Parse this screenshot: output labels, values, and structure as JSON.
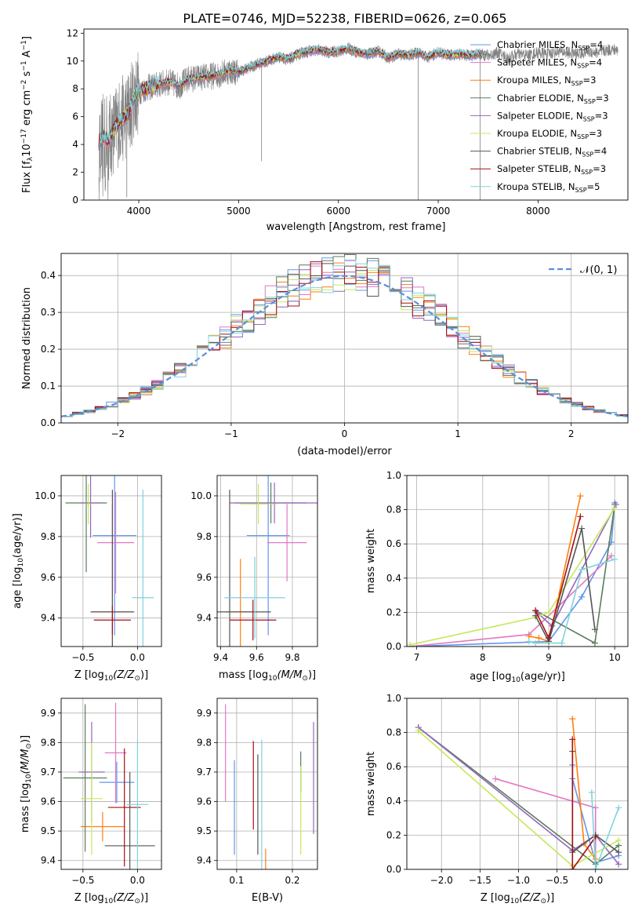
{
  "figure": {
    "title": "PLATE=0746, MJD=52238, FIBERID=0626, z=0.065",
    "palette": [
      "#6495ed",
      "#e377c2",
      "#ff7f0e",
      "#5a7d5a",
      "#9467bd",
      "#c5e85c",
      "#555555",
      "#a50f15",
      "#7fd3dc"
    ],
    "spectrum_color": "#808080"
  },
  "chart_data": [
    {
      "id": "spectrum",
      "type": "line",
      "xlabel": "wavelength [Angstrom, rest frame]",
      "ylabel": "Flux [f",
      "ylabel_parts": [
        "Flux [f",
        "λ",
        "10",
        "−17",
        " erg cm",
        "−2",
        " s",
        "−1",
        " A",
        "−1",
        "]"
      ],
      "xlim": [
        3450,
        8900
      ],
      "ylim": [
        0,
        12.3
      ],
      "xticks": [
        4000,
        5000,
        6000,
        7000,
        8000
      ],
      "yticks": [
        0,
        2,
        4,
        6,
        8,
        10,
        12
      ],
      "grid": false,
      "legend_placement": "top-right",
      "data_range": [
        3600,
        8800
      ],
      "model_envelope": {
        "x": [
          3600,
          3650,
          3700,
          3750,
          3800,
          3850,
          3900,
          3950,
          4000,
          4100,
          4200,
          4300,
          4400,
          4500,
          4600,
          4700,
          4800,
          4900,
          5000,
          5100,
          5200,
          5300,
          5400,
          5500,
          5600,
          5700,
          5800,
          5900,
          6000,
          6100,
          6200,
          6300,
          6400,
          6500,
          6600,
          6700,
          6800,
          6900,
          7000,
          7100,
          7200,
          7300,
          7400,
          7500,
          7600,
          7700,
          7800,
          7900,
          8000,
          8100,
          8200,
          8300,
          8400,
          8500,
          8600,
          8700,
          8800
        ],
        "y": [
          4.2,
          4.5,
          4.3,
          5.0,
          5.6,
          5.9,
          6.3,
          7.4,
          7.8,
          8.1,
          8.3,
          8.5,
          8.2,
          8.7,
          8.8,
          8.9,
          9.0,
          9.3,
          9.2,
          9.5,
          9.8,
          10.0,
          10.3,
          10.1,
          10.5,
          10.7,
          10.8,
          10.6,
          10.7,
          10.9,
          10.6,
          10.5,
          10.7,
          10.2,
          10.5,
          10.4,
          10.6,
          10.3,
          10.6,
          10.4,
          10.5,
          10.4,
          10.5,
          10.4,
          10.6,
          10.2,
          10.5,
          10.4,
          10.6,
          10.5,
          10.7,
          10.6,
          10.5,
          10.7,
          10.6,
          10.8,
          10.8
        ]
      },
      "absorption_dips": [
        [
          5230,
          2.8
        ],
        [
          6800,
          0
        ],
        [
          7420,
          0
        ],
        [
          3880,
          0.2
        ]
      ],
      "legend": [
        {
          "label": "Chabrier MILES, N",
          "sub": "SSP",
          "n": "=4"
        },
        {
          "label": "Salpeter MILES, N",
          "sub": "SSP",
          "n": "=4"
        },
        {
          "label": "Kroupa MILES, N",
          "sub": "SSP",
          "n": "=3"
        },
        {
          "label": "Chabrier ELODIE, N",
          "sub": "SSP",
          "n": "=3"
        },
        {
          "label": "Salpeter ELODIE, N",
          "sub": "SSP",
          "n": "=3"
        },
        {
          "label": "Kroupa ELODIE, N",
          "sub": "SSP",
          "n": "=3"
        },
        {
          "label": "Chabrier STELIB, N",
          "sub": "SSP",
          "n": "=4"
        },
        {
          "label": "Salpeter STELIB, N",
          "sub": "SSP",
          "n": "=3"
        },
        {
          "label": "Kroupa STELIB, N",
          "sub": "SSP",
          "n": "=5"
        }
      ]
    },
    {
      "id": "residuals",
      "type": "line",
      "xlabel": "(data-model)/error",
      "ylabel": "Normed distribution",
      "xlim": [
        -2.5,
        2.5
      ],
      "ylim": [
        0,
        0.46
      ],
      "xticks": [
        -2,
        -1,
        0,
        1,
        2
      ],
      "xtick_labels": [
        "−2",
        "−1",
        "0",
        "1",
        "2"
      ],
      "yticks": [
        0,
        0.1,
        0.2,
        0.3,
        0.4
      ],
      "ytick_labels": [
        "0.0",
        "0.1",
        "0.2",
        "0.3",
        "0.4"
      ],
      "grid": true,
      "legend_placement": "top-right",
      "legend": "𝒩(0, 1)",
      "bin_edges_start": -2.5,
      "bin_width": 0.1,
      "n_bins": 50
    },
    {
      "id": "z-age",
      "type": "scatter",
      "xlabel": "Z [log",
      "ylabel": "age  [log",
      "xlim": [
        -0.7,
        0.22
      ],
      "ylim": [
        9.26,
        10.1
      ],
      "xticks": [
        -0.5,
        0.0
      ],
      "xtick_labels": [
        "−0.5",
        "0.0"
      ],
      "yticks": [
        9.4,
        9.6,
        9.8,
        10.0
      ],
      "ytick_labels": [
        "9.4",
        "9.6",
        "9.8",
        "10.0"
      ],
      "grid": true,
      "points": [
        {
          "x": -0.21,
          "xerr": 0.2,
          "y": 9.805,
          "yerr": 0.49
        },
        {
          "x": -0.2,
          "xerr": 0.17,
          "y": 9.77,
          "yerr": 0.25
        },
        {
          "x": -0.23,
          "xerr": 0.19,
          "y": 9.43,
          "yerr": 0.53
        },
        {
          "x": -0.47,
          "xerr": 0.19,
          "y": 9.965,
          "yerr": 0.34
        },
        {
          "x": -0.43,
          "xerr": 0.1,
          "y": 9.965,
          "yerr": 0.17
        },
        {
          "x": -0.45,
          "xerr": 0.03,
          "y": 9.96,
          "yerr": 0.1
        },
        {
          "x": -0.23,
          "xerr": 0.2,
          "y": 9.43,
          "yerr": 0.6
        },
        {
          "x": -0.23,
          "xerr": 0.17,
          "y": 9.39,
          "yerr": 0.07
        },
        {
          "x": 0.05,
          "xerr": 0.1,
          "y": 9.5,
          "yerr": 0.53
        }
      ]
    },
    {
      "id": "mass-age",
      "type": "scatter",
      "xlabel": "mass [log",
      "ylabel": "",
      "xlim": [
        9.38,
        9.94
      ],
      "ylim": [
        9.26,
        10.1
      ],
      "xticks": [
        9.4,
        9.6,
        9.8
      ],
      "xtick_labels": [
        "9.4",
        "9.6",
        "9.8"
      ],
      "yticks": [
        9.4,
        9.6,
        9.8,
        10.0
      ],
      "ytick_labels": [
        "9.4",
        "9.6",
        "9.8",
        "10.0"
      ],
      "grid": true,
      "points": [
        {
          "x": 9.665,
          "xerr": 0.12,
          "y": 9.805,
          "yerr": 0.49
        },
        {
          "x": 9.77,
          "xerr": 0.11,
          "y": 9.77,
          "yerr": 0.19
        },
        {
          "x": 9.51,
          "xerr": 0.08,
          "y": 9.43,
          "yerr": 0.26
        },
        {
          "x": 9.68,
          "xerr": 0.2,
          "y": 9.965,
          "yerr": 0.1
        },
        {
          "x": 9.7,
          "xerr": 0.25,
          "y": 9.965,
          "yerr": 0.1
        },
        {
          "x": 9.61,
          "xerr": 0.1,
          "y": 9.96,
          "yerr": 0.1
        },
        {
          "x": 9.45,
          "xerr": 0.23,
          "y": 9.43,
          "yerr": 0.6
        },
        {
          "x": 9.58,
          "xerr": 0.13,
          "y": 9.39,
          "yerr": 0.1
        },
        {
          "x": 9.59,
          "xerr": 0.17,
          "y": 9.5,
          "yerr": 0.2
        }
      ]
    },
    {
      "id": "age-weight",
      "type": "line",
      "xlabel": "age  [log",
      "ylabel": "mass weight",
      "xlim": [
        6.85,
        10.2
      ],
      "ylim": [
        0,
        1.0
      ],
      "xticks": [
        7,
        8,
        9,
        10
      ],
      "yticks": [
        0,
        0.2,
        0.4,
        0.6,
        0.8,
        1.0
      ],
      "ytick_labels": [
        "0.0",
        "0.2",
        "0.4",
        "0.6",
        "0.8",
        "1.0"
      ],
      "grid": true,
      "series": [
        {
          "x": [
            6.9,
            9.0,
            9.5,
            9.95,
            10.0
          ],
          "y": [
            0.0,
            0.03,
            0.29,
            0.61,
            0.84
          ]
        },
        {
          "x": [
            6.9,
            8.7,
            9.95
          ],
          "y": [
            0.0,
            0.07,
            0.53
          ]
        },
        {
          "x": [
            8.7,
            8.85,
            9.0,
            9.48
          ],
          "y": [
            0.06,
            0.05,
            0.03,
            0.88
          ]
        },
        {
          "x": [
            8.8,
            9.7,
            10.0
          ],
          "y": [
            0.21,
            0.02,
            0.83
          ]
        },
        {
          "x": [
            8.82,
            9.05,
            10.02
          ],
          "y": [
            0.2,
            0.12,
            0.83
          ]
        },
        {
          "x": [
            6.9,
            8.8,
            9.0,
            10.0
          ],
          "y": [
            0.01,
            0.17,
            0.2,
            0.81
          ]
        },
        {
          "x": [
            8.8,
            9.0,
            9.5,
            9.7
          ],
          "y": [
            0.18,
            0.03,
            0.69,
            0.1
          ]
        },
        {
          "x": [
            8.8,
            9.0,
            9.48
          ],
          "y": [
            0.21,
            0.05,
            0.76
          ]
        },
        {
          "x": [
            8.7,
            8.8,
            9.2,
            9.5,
            10.0
          ],
          "y": [
            0.03,
            0.02,
            0.02,
            0.45,
            0.51
          ]
        }
      ]
    },
    {
      "id": "z-mass",
      "type": "scatter",
      "xlabel": "Z [log",
      "ylabel": "mass [log",
      "xlim": [
        -0.7,
        0.22
      ],
      "ylim": [
        9.37,
        9.95
      ],
      "xticks": [
        -0.5,
        0.0
      ],
      "xtick_labels": [
        "−0.5",
        "0.0"
      ],
      "yticks": [
        9.4,
        9.5,
        9.6,
        9.7,
        9.8,
        9.9
      ],
      "ytick_labels": [
        "9.4",
        "9.5",
        "9.6",
        "9.7",
        "9.8",
        "9.9"
      ],
      "grid": true,
      "points": [
        {
          "x": -0.19,
          "xerr": 0.16,
          "y": 9.665,
          "yerr": 0.07
        },
        {
          "x": -0.2,
          "xerr": 0.1,
          "y": 9.765,
          "yerr": 0.17
        },
        {
          "x": -0.32,
          "xerr": 0.2,
          "y": 9.515,
          "yerr": 0.05
        },
        {
          "x": -0.48,
          "xerr": 0.2,
          "y": 9.68,
          "yerr": 0.25
        },
        {
          "x": -0.42,
          "xerr": 0.12,
          "y": 9.7,
          "yerr": 0.17
        },
        {
          "x": -0.42,
          "xerr": 0.1,
          "y": 9.61,
          "yerr": 0.19
        },
        {
          "x": -0.07,
          "xerr": 0.23,
          "y": 9.45,
          "yerr": 0.25
        },
        {
          "x": -0.12,
          "xerr": 0.15,
          "y": 9.58,
          "yerr": 0.2
        },
        {
          "x": 0.0,
          "xerr": 0.1,
          "y": 9.59,
          "yerr": 0.22
        }
      ]
    },
    {
      "id": "ebv-mass",
      "type": "scatter",
      "xlabel": "E(B-V)",
      "ylabel": "",
      "xlim": [
        0.065,
        0.245
      ],
      "ylim": [
        9.37,
        9.95
      ],
      "xticks": [
        0.1,
        0.2
      ],
      "xtick_labels": [
        "0.1",
        "0.2"
      ],
      "yticks": [
        9.4,
        9.5,
        9.6,
        9.7,
        9.8,
        9.9
      ],
      "ytick_labels": [
        "9.4",
        "9.5",
        "9.6",
        "9.7",
        "9.8",
        "9.9"
      ],
      "grid": true,
      "points": [
        {
          "x": 0.096,
          "y": 9.58,
          "yerr": 0.16
        },
        {
          "x": 0.08,
          "y": 9.765,
          "yerr": 0.165
        },
        {
          "x": 0.152,
          "y": 9.4,
          "yerr": 0.04
        },
        {
          "x": 0.215,
          "y": 9.7,
          "yerr": 0.07
        },
        {
          "x": 0.238,
          "y": 9.68,
          "yerr": 0.19
        },
        {
          "x": 0.215,
          "y": 9.57,
          "yerr": 0.15
        },
        {
          "x": 0.138,
          "y": 9.59,
          "yerr": 0.17
        },
        {
          "x": 0.13,
          "y": 9.655,
          "yerr": 0.15
        },
        {
          "x": 0.145,
          "y": 9.59,
          "yerr": 0.22
        }
      ]
    },
    {
      "id": "z-weight",
      "type": "line",
      "xlabel": "Z [log",
      "ylabel": "mass weight",
      "xlim": [
        -2.45,
        0.42
      ],
      "ylim": [
        0,
        1.0
      ],
      "xticks": [
        -2.0,
        -1.5,
        -1.0,
        -0.5,
        0.0
      ],
      "xtick_labels": [
        "−2.0",
        "−1.5",
        "−1.0",
        "−0.5",
        "0.0"
      ],
      "yticks": [
        0,
        0.2,
        0.4,
        0.6,
        0.8,
        1.0
      ],
      "ytick_labels": [
        "0.0",
        "0.2",
        "0.4",
        "0.6",
        "0.8",
        "1.0"
      ],
      "grid": true,
      "series": [
        {
          "x": [
            -0.3,
            -0.3,
            0.0,
            0.3
          ],
          "y": [
            0.61,
            0.53,
            0.04,
            0.08
          ]
        },
        {
          "x": [
            -1.3,
            0.0,
            0.0
          ],
          "y": [
            0.53,
            0.36,
            0.0
          ]
        },
        {
          "x": [
            -0.3,
            -0.15,
            0.0
          ],
          "y": [
            0.88,
            0.15,
            0.06
          ]
        },
        {
          "x": [
            -2.3,
            0.0,
            0.3
          ],
          "y": [
            0.83,
            0.03,
            0.14
          ]
        },
        {
          "x": [
            -2.3,
            -0.3,
            0.0,
            0.3
          ],
          "y": [
            0.83,
            0.11,
            0.2,
            0.03
          ]
        },
        {
          "x": [
            -2.3,
            -0.3,
            0.3
          ],
          "y": [
            0.81,
            0.02,
            0.17
          ]
        },
        {
          "x": [
            -0.3,
            -0.3,
            0.0,
            0.3
          ],
          "y": [
            0.69,
            0.1,
            0.2,
            0.1
          ]
        },
        {
          "x": [
            -0.3,
            -0.3,
            0.0
          ],
          "y": [
            0.76,
            0.0,
            0.19
          ]
        },
        {
          "x": [
            -0.05,
            0.0,
            0.3
          ],
          "y": [
            0.45,
            0.0,
            0.36
          ]
        }
      ]
    }
  ],
  "labels": {
    "zlabel_sub": "10",
    "zlabel_tail": "(Z/Z",
    "zlabel_end": ")]",
    "masslabel_tail": "(M/M",
    "agelabel_sub": "10",
    "agelabel_tail": "(age/yr)]",
    "sun": "⊙"
  }
}
